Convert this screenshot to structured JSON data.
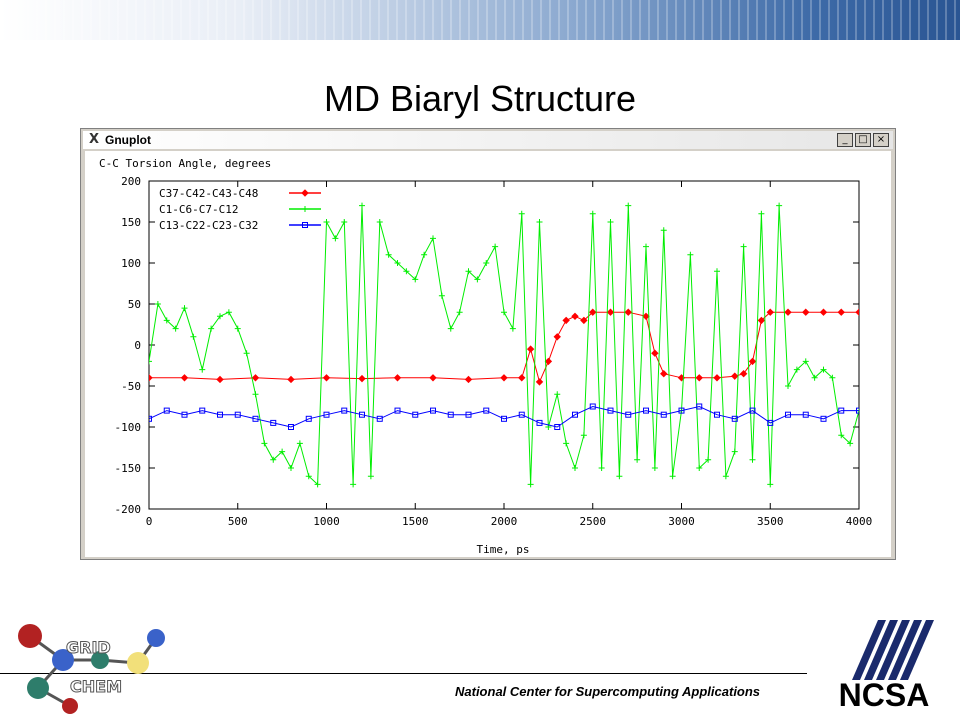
{
  "slide": {
    "title": "MD Biaryl Structure",
    "footer": "National Center for Supercomputing Applications",
    "logo_left_text": [
      "GRID",
      "CHEM"
    ],
    "logo_right_text": "NCSA"
  },
  "window": {
    "title": "Gnuplot",
    "buttons": [
      "_",
      "□",
      "×"
    ]
  },
  "colors": {
    "series1": "#ff0000",
    "series2": "#00ee00",
    "series3": "#0000ff",
    "window_bg": "#d4d0c8"
  },
  "chart_data": {
    "type": "line",
    "title": "C-C Torsion Angle, degrees",
    "xlabel": "Time, ps",
    "ylabel": "",
    "xlim": [
      0,
      4000
    ],
    "ylim": [
      -200,
      200
    ],
    "xticks": [
      0,
      500,
      1000,
      1500,
      2000,
      2500,
      3000,
      3500,
      4000
    ],
    "yticks": [
      200,
      150,
      100,
      50,
      0,
      -50,
      -100,
      -150,
      -200
    ],
    "grid": false,
    "legend_position": "top-left",
    "series": [
      {
        "name": "C37-C42-C43-C48",
        "color": "#ff0000",
        "marker": "diamond",
        "x": [
          0,
          200,
          400,
          600,
          800,
          1000,
          1200,
          1400,
          1600,
          1800,
          2000,
          2100,
          2150,
          2200,
          2250,
          2300,
          2350,
          2400,
          2450,
          2500,
          2600,
          2700,
          2800,
          2850,
          2900,
          3000,
          3100,
          3200,
          3300,
          3350,
          3400,
          3450,
          3500,
          3600,
          3700,
          3800,
          3900,
          4000
        ],
        "y": [
          -40,
          -40,
          -42,
          -40,
          -42,
          -40,
          -41,
          -40,
          -40,
          -42,
          -40,
          -40,
          -5,
          -45,
          -20,
          10,
          30,
          35,
          30,
          40,
          40,
          40,
          35,
          -10,
          -35,
          -40,
          -40,
          -40,
          -38,
          -35,
          -20,
          30,
          40,
          40,
          40,
          40,
          40,
          40
        ]
      },
      {
        "name": "C1-C6-C7-C12",
        "color": "#00ee00",
        "marker": "plus",
        "x": [
          0,
          50,
          100,
          150,
          200,
          250,
          300,
          350,
          400,
          450,
          500,
          550,
          600,
          650,
          700,
          750,
          800,
          850,
          900,
          950,
          1000,
          1050,
          1100,
          1150,
          1200,
          1250,
          1300,
          1350,
          1400,
          1450,
          1500,
          1550,
          1600,
          1650,
          1700,
          1750,
          1800,
          1850,
          1900,
          1950,
          2000,
          2050,
          2100,
          2150,
          2200,
          2250,
          2300,
          2350,
          2400,
          2450,
          2500,
          2550,
          2600,
          2650,
          2700,
          2750,
          2800,
          2850,
          2900,
          2950,
          3000,
          3050,
          3100,
          3150,
          3200,
          3250,
          3300,
          3350,
          3400,
          3450,
          3500,
          3550,
          3600,
          3650,
          3700,
          3750,
          3800,
          3850,
          3900,
          3950,
          4000
        ],
        "y": [
          -20,
          50,
          30,
          20,
          45,
          10,
          -30,
          20,
          35,
          40,
          20,
          -10,
          -60,
          -120,
          -140,
          -130,
          -150,
          -120,
          -160,
          -170,
          150,
          130,
          150,
          -170,
          170,
          -160,
          150,
          110,
          100,
          90,
          80,
          110,
          130,
          60,
          20,
          40,
          90,
          80,
          100,
          120,
          40,
          20,
          160,
          -170,
          150,
          -100,
          -60,
          -120,
          -150,
          -110,
          160,
          -150,
          150,
          -160,
          170,
          -140,
          120,
          -150,
          140,
          -160,
          -80,
          110,
          -150,
          -140,
          90,
          -160,
          -130,
          120,
          -140,
          160,
          -170,
          170,
          -50,
          -30,
          -20,
          -40,
          -30,
          -40,
          -110,
          -120,
          -80
        ]
      },
      {
        "name": "C13-C22-C23-C32",
        "color": "#0000ff",
        "marker": "square",
        "x": [
          0,
          100,
          200,
          300,
          400,
          500,
          600,
          700,
          800,
          900,
          1000,
          1100,
          1200,
          1300,
          1400,
          1500,
          1600,
          1700,
          1800,
          1900,
          2000,
          2100,
          2200,
          2300,
          2400,
          2500,
          2600,
          2700,
          2800,
          2900,
          3000,
          3100,
          3200,
          3300,
          3400,
          3500,
          3600,
          3700,
          3800,
          3900,
          4000
        ],
        "y": [
          -90,
          -80,
          -85,
          -80,
          -85,
          -85,
          -90,
          -95,
          -100,
          -90,
          -85,
          -80,
          -85,
          -90,
          -80,
          -85,
          -80,
          -85,
          -85,
          -80,
          -90,
          -85,
          -95,
          -100,
          -85,
          -75,
          -80,
          -85,
          -80,
          -85,
          -80,
          -75,
          -85,
          -90,
          -80,
          -95,
          -85,
          -85,
          -90,
          -80,
          -80
        ]
      }
    ]
  }
}
